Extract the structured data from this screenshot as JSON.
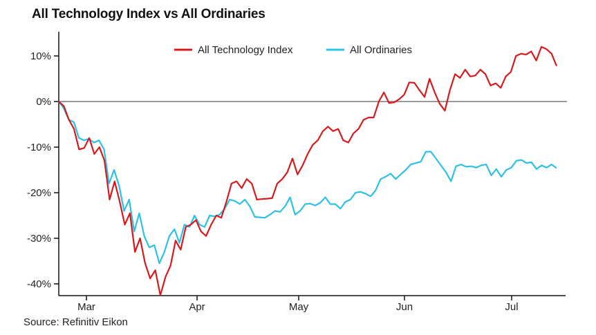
{
  "title": "All Technology Index vs All Ordinaries",
  "source": "Source: Refinitiv Eikon",
  "chart_data": {
    "type": "line",
    "title": "All Technology Index vs All Ordinaries",
    "xlabel": "",
    "ylabel": "",
    "ylim": [
      -42.5,
      13
    ],
    "yticks": [
      10,
      0,
      -10,
      -20,
      -30,
      -40
    ],
    "ytick_labels": [
      "10%",
      "0%",
      "-10%",
      "-20%",
      "-30%",
      "-40%"
    ],
    "xtick_labels": [
      "Mar",
      "Apr",
      "May",
      "Jun",
      "Jul"
    ],
    "zero_line": true,
    "legend_position": "top-center",
    "colors": {
      "tech": "#d7191c",
      "ords": "#2bc0e4",
      "zero": "#9a9a9a",
      "axis": "#111111"
    },
    "series": [
      {
        "name": "All Technology Index",
        "values": [
          0,
          -1,
          -4,
          -6,
          -10.5,
          -10.2,
          -8,
          -11.5,
          -10,
          -13,
          -21.5,
          -17.5,
          -22,
          -27,
          -24.5,
          -33,
          -30,
          -35.5,
          -38.8,
          -37,
          -42.5,
          -38.5,
          -36,
          -30.5,
          -32.5,
          -27.5,
          -27,
          -26,
          -28.5,
          -29.5,
          -27,
          -25,
          -25.5,
          -22,
          -18,
          -17.5,
          -19,
          -17,
          -18,
          -21.5,
          -21.4,
          -21.3,
          -21.2,
          -18,
          -17,
          -15.5,
          -12.5,
          -16,
          -14,
          -11.5,
          -9.5,
          -8.5,
          -6.5,
          -5.5,
          -6.5,
          -6,
          -8.5,
          -9,
          -7,
          -6,
          -4,
          -3.5,
          -3.5,
          0,
          2,
          -0.3,
          -0.2,
          0.5,
          1.5,
          4.2,
          4.1,
          2.5,
          1,
          5,
          2,
          -0.5,
          -2,
          2.5,
          6,
          5.2,
          7,
          5.5,
          5.7,
          7,
          6,
          3.5,
          4,
          3,
          5.5,
          6.5,
          10,
          10.5,
          10.3,
          11,
          9,
          12,
          11.5,
          10.5,
          7.8
        ]
      },
      {
        "name": "All Ordinaries",
        "values": [
          0,
          -1.5,
          -4,
          -4.5,
          -8,
          -8.5,
          -8.2,
          -9,
          -8.5,
          -10.5,
          -18,
          -15,
          -18.5,
          -24,
          -21.5,
          -28.5,
          -24.5,
          -29.5,
          -32,
          -31.5,
          -35.5,
          -33,
          -29.5,
          -28,
          -31,
          -27,
          -27.5,
          -25,
          -27,
          -27.5,
          -25,
          -25.2,
          -24.8,
          -23.5,
          -21.5,
          -21.8,
          -22.5,
          -21.5,
          -23,
          -25.3,
          -25.4,
          -25.5,
          -24.8,
          -24,
          -24.2,
          -23,
          -21,
          -24.8,
          -24,
          -22.5,
          -22.4,
          -22.8,
          -22.2,
          -21,
          -22.5,
          -22.5,
          -23.5,
          -22,
          -21.5,
          -20,
          -19.8,
          -20.2,
          -20.8,
          -19.5,
          -17,
          -16.5,
          -15.8,
          -17,
          -16,
          -15,
          -13.8,
          -13.5,
          -13.2,
          -11,
          -11,
          -12.5,
          -14,
          -15.5,
          -17.5,
          -14.2,
          -13.8,
          -14.3,
          -14.2,
          -14.5,
          -14,
          -13.8,
          -16.2,
          -14.8,
          -16.5,
          -15,
          -14.5,
          -13,
          -12.8,
          -13.5,
          -13.3,
          -14.8,
          -14,
          -14.5,
          -13.8,
          -14.6
        ]
      }
    ]
  }
}
